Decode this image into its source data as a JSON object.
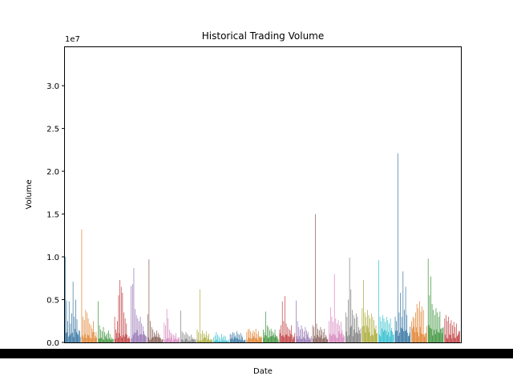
{
  "chart_data": {
    "type": "bar",
    "title": "Historical Trading Volume",
    "xlabel": "Date",
    "ylabel": "Volume",
    "y_offset_text": "1e7",
    "y_scale_factor": 10000000,
    "ylim": [
      0,
      34500000
    ],
    "y_ticks": [
      0,
      5000000,
      10000000,
      15000000,
      20000000,
      25000000,
      30000000
    ],
    "y_tick_labels": [
      "0.0",
      "0.5",
      "1.0",
      "1.5",
      "2.0",
      "2.5",
      "3.0"
    ],
    "x_tick_labels_note": "dense overlapping date labels render as a solid black band",
    "grid": false,
    "legend": "none",
    "palette": [
      "#3274a1",
      "#e1812c",
      "#3a923a",
      "#c03d3e",
      "#9372b2",
      "#845b53",
      "#d684bd",
      "#7f7f7f",
      "#a9aa35",
      "#2ebece"
    ],
    "series": [
      {
        "name": "",
        "peaks": [
          10000000,
          4900000,
          2500000,
          4800000,
          2200000,
          3400000,
          7100000,
          3000000,
          5000000,
          2700000
        ]
      },
      {
        "name": "",
        "peaks": [
          13200000,
          3000000,
          2600000,
          3800000,
          3500000,
          2800000,
          2200000,
          2000000,
          1600000,
          2500000
        ]
      },
      {
        "name": "",
        "peaks": [
          4800000,
          2000000,
          1500000,
          1300000,
          1800000,
          1200000,
          900000,
          1100000,
          1400000,
          1000000
        ]
      },
      {
        "name": "",
        "peaks": [
          3000000,
          1500000,
          2500000,
          5500000,
          7300000,
          6500000,
          5800000,
          3500000,
          2800000,
          2200000
        ]
      },
      {
        "name": "",
        "peaks": [
          6600000,
          6800000,
          8700000,
          3900000,
          3200000,
          2800000,
          2500000,
          3000000,
          2200000,
          1900000
        ]
      },
      {
        "name": "",
        "peaks": [
          3300000,
          9700000,
          2500000,
          1800000,
          1500000,
          1200000,
          1000000,
          1400000,
          1100000,
          900000
        ]
      },
      {
        "name": "",
        "peaks": [
          2300000,
          2000000,
          3900000,
          2800000,
          1500000,
          1200000,
          1000000,
          900000,
          800000,
          1100000
        ]
      },
      {
        "name": "",
        "peaks": [
          3700000,
          1300000,
          1100000,
          900000,
          1200000,
          1000000,
          800000,
          700000,
          900000,
          600000
        ]
      },
      {
        "name": "",
        "peaks": [
          1500000,
          1200000,
          6200000,
          1000000,
          1400000,
          1100000,
          900000,
          1300000,
          800000,
          1000000
        ]
      },
      {
        "name": "",
        "peaks": [
          600000,
          800000,
          1200000,
          900000,
          700000,
          500000,
          1000000,
          600000,
          800000,
          700000
        ]
      },
      {
        "name": "",
        "peaks": [
          1000000,
          900000,
          1200000,
          1100000,
          800000,
          1300000,
          1000000,
          900000,
          1100000,
          800000
        ]
      },
      {
        "name": "",
        "peaks": [
          1200000,
          1500000,
          1600000,
          1300000,
          1100000,
          1400000,
          1200000,
          1600000,
          1000000,
          1300000
        ]
      },
      {
        "name": "",
        "peaks": [
          1500000,
          1200000,
          3600000,
          2000000,
          1800000,
          1400000,
          1600000,
          1300000,
          1100000,
          1500000
        ]
      },
      {
        "name": "",
        "peaks": [
          1500000,
          2000000,
          4800000,
          2500000,
          5400000,
          2200000,
          1800000,
          1600000,
          1400000,
          2000000
        ]
      },
      {
        "name": "",
        "peaks": [
          4900000,
          2500000,
          1800000,
          1500000,
          2000000,
          1600000,
          1300000,
          1800000,
          1400000,
          1200000
        ]
      },
      {
        "name": "",
        "peaks": [
          2000000,
          1800000,
          15000000,
          2200000,
          1600000,
          1400000,
          1800000,
          1500000,
          1200000,
          1600000
        ]
      },
      {
        "name": "",
        "peaks": [
          2500000,
          4100000,
          3000000,
          2400000,
          8000000,
          2800000,
          2200000,
          2600000,
          2000000,
          2400000
        ]
      },
      {
        "name": "",
        "peaks": [
          3500000,
          3000000,
          5000000,
          9900000,
          6200000,
          3800000,
          3200000,
          2800000,
          3400000,
          3000000
        ]
      },
      {
        "name": "",
        "peaks": [
          4000000,
          7300000,
          3500000,
          3000000,
          3800000,
          3200000,
          2800000,
          3400000,
          3000000,
          2600000
        ]
      },
      {
        "name": "",
        "peaks": [
          9600000,
          3000000,
          2500000,
          3200000,
          2800000,
          2400000,
          3000000,
          2600000,
          2200000,
          2800000
        ]
      },
      {
        "name": "",
        "peaks": [
          3000000,
          2500000,
          22100000,
          3500000,
          5800000,
          3000000,
          8300000,
          3800000,
          6500000,
          3200000
        ]
      },
      {
        "name": "",
        "peaks": [
          2500000,
          3000000,
          2800000,
          3500000,
          4500000,
          4000000,
          4800000,
          3600000,
          4200000,
          3800000
        ]
      },
      {
        "name": "",
        "peaks": [
          9800000,
          5500000,
          7700000,
          4500000,
          3800000,
          3200000,
          4000000,
          3500000,
          3000000,
          3600000
        ]
      },
      {
        "name": "",
        "peaks": [
          2800000,
          3200000,
          2500000,
          3000000,
          2200000,
          2600000,
          2000000,
          2400000,
          1800000,
          2200000
        ]
      }
    ]
  }
}
